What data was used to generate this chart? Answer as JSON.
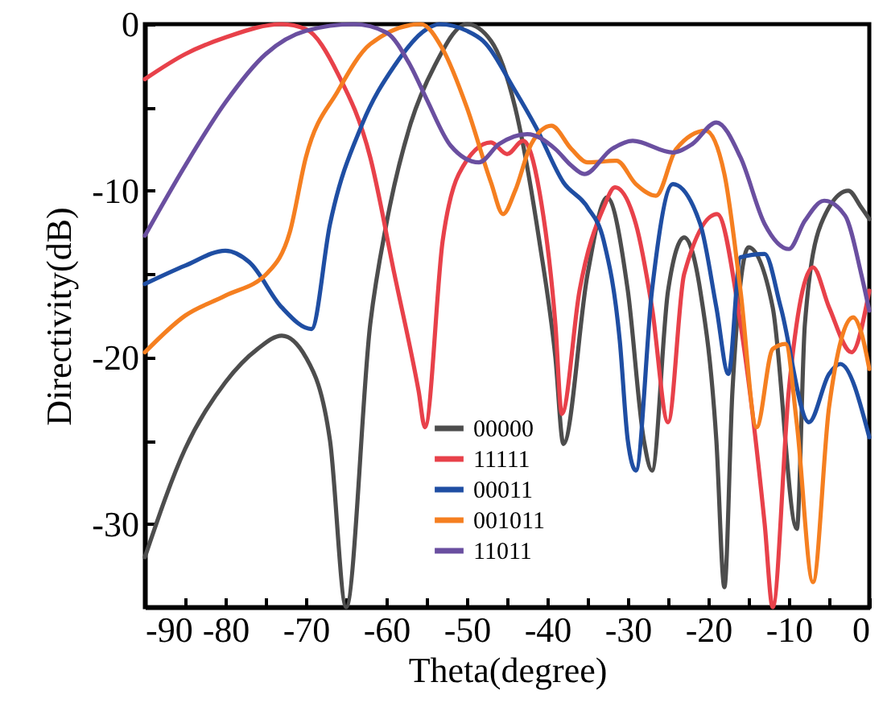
{
  "chart_data": {
    "type": "line",
    "xlabel": "Theta(degree)",
    "ylabel": "Directivity(dB)",
    "xlim": [
      -90,
      0
    ],
    "ylim": [
      -35,
      0
    ],
    "xticks": [
      -90,
      {
        "value": -85,
        "label": null
      },
      -80,
      {
        "value": -75,
        "label": null
      },
      -70,
      {
        "value": -65,
        "label": null
      },
      -60,
      {
        "value": -55,
        "label": null
      },
      -50,
      {
        "value": -45,
        "label": null
      },
      -40,
      {
        "value": -35,
        "label": null
      },
      -30,
      {
        "value": -25,
        "label": null
      },
      -20,
      {
        "value": -15,
        "label": null
      },
      -10,
      {
        "value": -5,
        "label": null
      },
      0
    ],
    "yticks": [
      {
        "value": -35,
        "label": null
      },
      -30,
      {
        "value": -25,
        "label": null
      },
      -20,
      {
        "value": -15,
        "label": null
      },
      -10,
      {
        "value": -5,
        "label": null
      },
      0
    ],
    "grid": false,
    "legend": "bottom",
    "marker": "none",
    "line_style": "solid",
    "series": [
      {
        "name": "00000",
        "color": "#4d4d4d",
        "x": [
          -90,
          -85,
          -80,
          -76,
          -73,
          -70,
          -67,
          -65,
          -62,
          -60,
          -57,
          -54,
          -50,
          -47,
          -44,
          -41,
          -39,
          -38,
          -35,
          -32.6,
          -30,
          -28,
          -27,
          -25,
          -23,
          -21,
          -19,
          -18,
          -17,
          -15,
          -12,
          -9,
          -8,
          -6,
          -2.6,
          -1,
          0
        ],
        "values": [
          -32,
          -25.5,
          -21.5,
          -19.5,
          -18.7,
          -20,
          -25,
          -35,
          -18,
          -12,
          -6,
          -2.5,
          0,
          -1,
          -5,
          -13,
          -20,
          -25.2,
          -15,
          -10.4,
          -16,
          -25,
          -26.8,
          -16,
          -12.8,
          -16,
          -25,
          -33.8,
          -22,
          -13.4,
          -17,
          -30.3,
          -18,
          -12,
          -10,
          -11,
          -11.7
        ]
      },
      {
        "name": "11111",
        "color": "#e8414a",
        "x": [
          -90,
          -85,
          -80,
          -73,
          -70,
          -66,
          -62,
          -59,
          -56,
          -55.2,
          -53,
          -51,
          -47,
          -45,
          -43,
          -41,
          -39,
          -38.2,
          -36,
          -33,
          -31.6,
          -29,
          -27,
          -25,
          -23,
          -18.9,
          -16,
          -13,
          -12,
          -10,
          -7,
          -5,
          -2.2,
          0
        ],
        "values": [
          -3.3,
          -1.8,
          -0.8,
          0,
          -0.3,
          -3,
          -8,
          -15,
          -22,
          -24.2,
          -13,
          -9,
          -7.1,
          -7.8,
          -7,
          -10,
          -18,
          -23.4,
          -16,
          -11,
          -9.8,
          -12,
          -17,
          -23.9,
          -15,
          -11.4,
          -18,
          -30,
          -35,
          -22,
          -14.6,
          -17,
          -19.7,
          -16
        ]
      },
      {
        "name": "00011",
        "color": "#1f4ea3",
        "x": [
          -90,
          -85,
          -80,
          -77,
          -73,
          -69.3,
          -67,
          -63,
          -59,
          -55,
          -53.4,
          -50,
          -48,
          -44,
          -41.4,
          -38,
          -35,
          -33,
          -31,
          -30,
          -29,
          -27,
          -24.4,
          -21,
          -19,
          -17.5,
          -16,
          -13,
          -11,
          -7.5,
          -5,
          -3.6,
          0
        ],
        "values": [
          -15.6,
          -14.5,
          -13.6,
          -14.3,
          -17,
          -18.3,
          -12,
          -6,
          -2.5,
          -0.3,
          0,
          -0.4,
          -1,
          -4,
          -6.2,
          -9.5,
          -11,
          -13,
          -19,
          -25,
          -26.8,
          -16,
          -9.6,
          -12,
          -17,
          -21,
          -14,
          -13.8,
          -17,
          -23.9,
          -21,
          -20.4,
          -24.8
        ]
      },
      {
        "name": "001011",
        "color": "#f57f20",
        "x": [
          -90,
          -85,
          -80,
          -74.7,
          -72,
          -70,
          -66,
          -62,
          -55.7,
          -53,
          -50,
          -47,
          -45.5,
          -44,
          -42,
          -39.5,
          -37,
          -35,
          -31.4,
          -29,
          -26.5,
          -24,
          -20.3,
          -18,
          -16,
          -14,
          -12,
          -10.4,
          -9,
          -7,
          -5,
          -2,
          -1,
          0
        ],
        "values": [
          -19.7,
          -17.5,
          -16.3,
          -14.9,
          -12.5,
          -8,
          -4,
          -1.2,
          0,
          -1.5,
          -5,
          -9.5,
          -11.4,
          -10,
          -7.2,
          -6.1,
          -7.5,
          -8.3,
          -8.2,
          -9.6,
          -10.3,
          -7.5,
          -6.4,
          -9,
          -16,
          -24.2,
          -19.5,
          -19.2,
          -24,
          -33.5,
          -23,
          -17.6,
          -18.5,
          -20.7
        ]
      },
      {
        "name": "11011",
        "color": "#6a4fa0",
        "x": [
          -90,
          -85,
          -80,
          -75,
          -70,
          -64,
          -60,
          -57,
          -55,
          -52,
          -48.5,
          -46,
          -42.5,
          -39,
          -37,
          -35.4,
          -32,
          -29.4,
          -24.4,
          -22,
          -19,
          -16,
          -13,
          -10,
          -8,
          -5.6,
          -3,
          -1,
          0
        ],
        "values": [
          -12.7,
          -8.5,
          -4.7,
          -1.8,
          -0.4,
          0,
          -0.5,
          -2.5,
          -4.5,
          -7.3,
          -8.3,
          -7.2,
          -6.6,
          -7.5,
          -8.5,
          -9,
          -7.5,
          -7,
          -7.7,
          -7.2,
          -5.9,
          -8,
          -12,
          -13.5,
          -11.8,
          -10.6,
          -11.5,
          -15,
          -17.2
        ]
      }
    ]
  }
}
